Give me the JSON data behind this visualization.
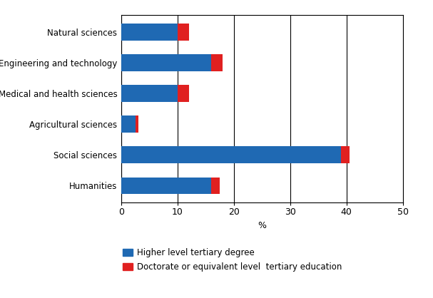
{
  "categories": [
    "Humanities",
    "Social sciences",
    "Agricultural sciences",
    "Medical and health sciences",
    "Engineering and technology",
    "Natural sciences"
  ],
  "higher_level": [
    16.0,
    39.0,
    2.5,
    10.0,
    16.0,
    10.0
  ],
  "doctorate": [
    1.5,
    1.5,
    0.5,
    2.0,
    2.0,
    2.0
  ],
  "blue_color": "#1f69b3",
  "red_color": "#e02020",
  "xlabel": "%",
  "xlim": [
    0,
    50
  ],
  "xticks": [
    0,
    10,
    20,
    30,
    40,
    50
  ],
  "legend_blue": "Higher level tertiary degree",
  "legend_red": "Doctorate or equivalent level  tertiary education",
  "bar_height": 0.55,
  "background_color": "#ffffff",
  "grid_color": "#000000",
  "figsize": [
    6.07,
    4.18
  ],
  "dpi": 100
}
